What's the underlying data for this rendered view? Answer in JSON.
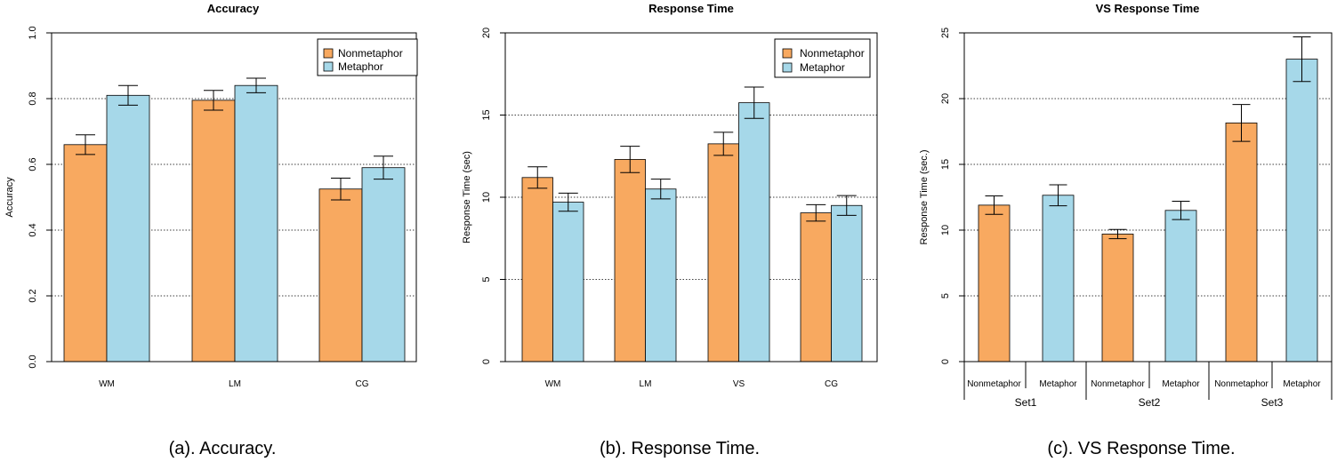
{
  "colors": {
    "nonmetaphor": "#f8a960",
    "metaphor": "#a6d8e9",
    "axis": "#000000",
    "grid": "#000000"
  },
  "chart_data": [
    {
      "type": "bar",
      "title": "Accuracy",
      "caption": "(a). Accuracy.",
      "xlabel": "",
      "ylabel": "Accuracy",
      "ylim": [
        0,
        1.0
      ],
      "yticks": [
        "0.0",
        "0.2",
        "0.4",
        "0.6",
        "0.8",
        "1.0"
      ],
      "ytick_values": [
        0,
        0.2,
        0.4,
        0.6,
        0.8,
        1.0
      ],
      "grid": "horizontal dotted at 0.2, 0.4, 0.6, 0.8",
      "legend_position": "top-right",
      "categories": [
        "WM",
        "LM",
        "CG"
      ],
      "series": [
        {
          "name": "Nonmetaphor",
          "values": [
            0.66,
            0.795,
            0.525
          ],
          "error": [
            0.03,
            0.03,
            0.033
          ]
        },
        {
          "name": "Metaphor",
          "values": [
            0.81,
            0.84,
            0.59
          ],
          "error": [
            0.03,
            0.022,
            0.035
          ]
        }
      ]
    },
    {
      "type": "bar",
      "title": "Response Time",
      "caption": "(b). Response Time.",
      "xlabel": "",
      "ylabel": "Response Time (sec)",
      "ylim": [
        0,
        20
      ],
      "yticks": [
        "0",
        "5",
        "10",
        "15",
        "20"
      ],
      "ytick_values": [
        0,
        5,
        10,
        15,
        20
      ],
      "grid": "horizontal dotted at 5, 10, 15",
      "legend_position": "top-right",
      "categories": [
        "WM",
        "LM",
        "VS",
        "CG"
      ],
      "series": [
        {
          "name": "Nonmetaphor",
          "values": [
            11.2,
            12.3,
            13.25,
            9.05
          ],
          "error": [
            0.65,
            0.8,
            0.7,
            0.5
          ]
        },
        {
          "name": "Metaphor",
          "values": [
            9.7,
            10.5,
            15.75,
            9.5
          ],
          "error": [
            0.55,
            0.6,
            0.95,
            0.6
          ]
        }
      ]
    },
    {
      "type": "bar",
      "title": "VS Response Time",
      "caption": "(c). VS Response Time.",
      "xlabel": "",
      "ylabel": "Response Time (sec.)",
      "ylim": [
        0,
        25
      ],
      "yticks": [
        "0",
        "5",
        "10",
        "15",
        "20",
        "25"
      ],
      "ytick_values": [
        0,
        5,
        10,
        15,
        20,
        25
      ],
      "grid": "horizontal dotted at 5, 10, 15, 20",
      "legend_position": "none",
      "groups": [
        "Set1",
        "Set2",
        "Set3"
      ],
      "categories": [
        "Nonmetaphor",
        "Metaphor",
        "Nonmetaphor",
        "Metaphor",
        "Nonmetaphor",
        "Metaphor"
      ],
      "values": [
        11.9,
        12.65,
        9.7,
        11.5,
        18.15,
        23.0
      ],
      "error": [
        0.7,
        0.8,
        0.35,
        0.7,
        1.4,
        1.7
      ],
      "bar_series": [
        "nonmetaphor",
        "metaphor",
        "nonmetaphor",
        "metaphor",
        "nonmetaphor",
        "metaphor"
      ]
    }
  ]
}
